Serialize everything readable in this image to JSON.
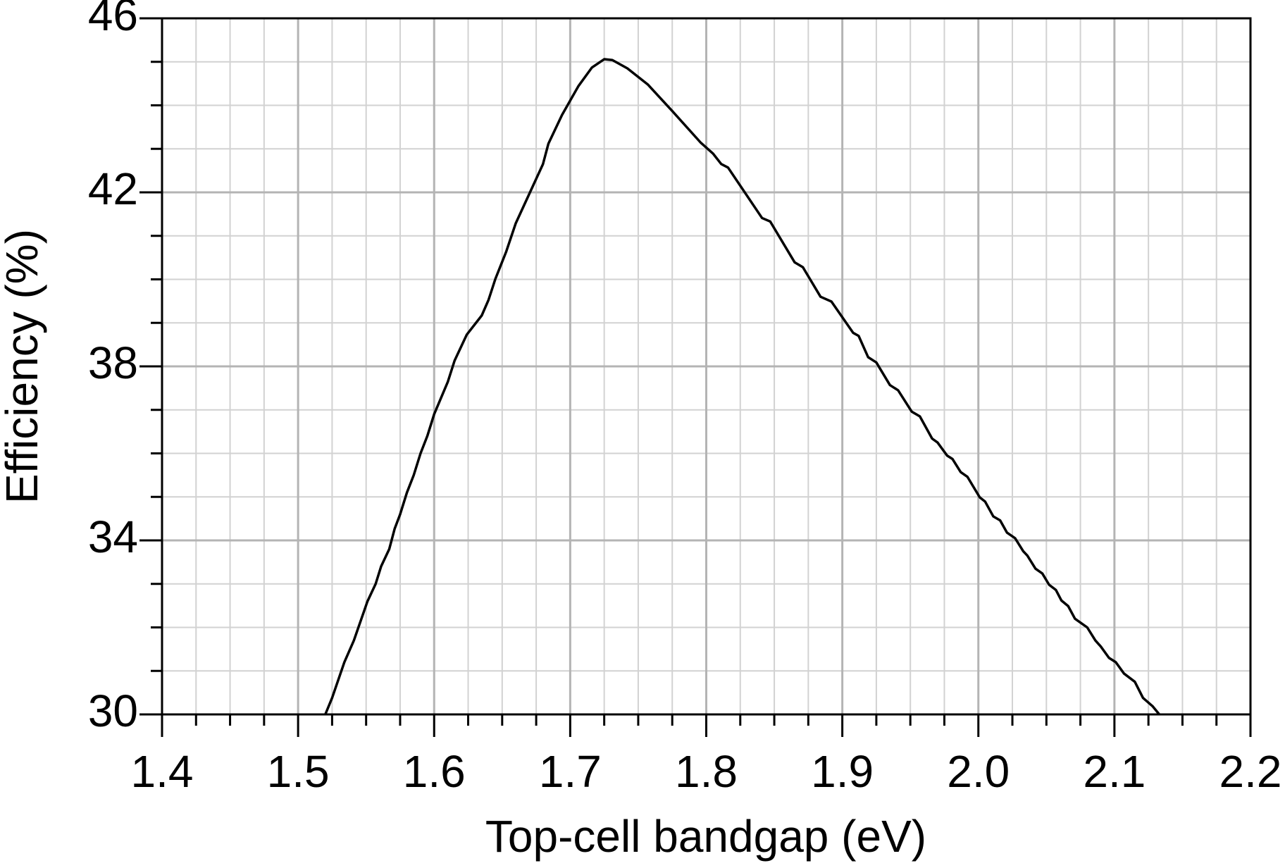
{
  "chart_data": {
    "type": "line",
    "xlabel": "Top-cell bandgap (eV)",
    "ylabel": "Efficiency (%)",
    "xlim": [
      1.4,
      2.2
    ],
    "ylim": [
      30,
      46
    ],
    "xticks": [
      1.4,
      1.5,
      1.6,
      1.7,
      1.8,
      1.9,
      {
        "value": 2,
        "label": "2.0"
      },
      2.1,
      2.2
    ],
    "yticks": [
      30,
      34,
      38,
      42,
      46
    ],
    "grid": true,
    "series": [
      {
        "color": "#000000",
        "x": [
          1.52,
          1.525,
          1.534,
          1.541,
          1.551,
          1.557,
          1.561,
          1.567,
          1.571,
          1.575,
          1.58,
          1.585,
          1.59,
          1.595,
          1.6,
          1.61,
          1.615,
          1.624,
          1.635,
          1.64,
          1.645,
          1.653,
          1.66,
          1.67,
          1.68,
          1.684,
          1.694,
          1.706,
          1.716,
          1.725,
          1.731,
          1.742,
          1.757,
          1.775,
          1.796,
          1.805,
          1.811,
          1.816,
          1.841,
          1.847,
          1.865,
          1.871,
          1.884,
          1.892,
          1.908,
          1.912,
          1.919,
          1.925,
          1.935,
          1.941,
          1.951,
          1.957,
          1.966,
          1.97,
          1.977,
          1.981,
          1.987,
          1.992,
          2.001,
          2.005,
          2.011,
          2.016,
          2.021,
          2.027,
          2.033,
          2.036,
          2.042,
          2.047,
          2.052,
          2.057,
          2.061,
          2.066,
          2.071,
          2.08,
          2.086,
          2.09,
          2.096,
          2.101,
          2.107,
          2.115,
          2.121,
          2.128,
          2.133
        ],
        "values": [
          30.0,
          30.38,
          31.2,
          31.7,
          32.6,
          33.0,
          33.4,
          33.8,
          34.27,
          34.6,
          35.1,
          35.5,
          36.0,
          36.4,
          36.9,
          37.64,
          38.13,
          38.73,
          39.17,
          39.53,
          40.01,
          40.64,
          41.29,
          41.97,
          42.65,
          43.12,
          43.78,
          44.44,
          44.87,
          45.06,
          45.04,
          44.85,
          44.48,
          43.87,
          43.14,
          42.89,
          42.65,
          42.57,
          41.41,
          41.33,
          40.39,
          40.28,
          39.6,
          39.49,
          38.77,
          38.7,
          38.21,
          38.09,
          37.57,
          37.45,
          36.96,
          36.85,
          36.34,
          36.25,
          35.95,
          35.87,
          35.57,
          35.46,
          34.99,
          34.89,
          34.55,
          34.46,
          34.18,
          34.05,
          33.75,
          33.65,
          33.35,
          33.24,
          32.98,
          32.86,
          32.62,
          32.49,
          32.2,
          32.0,
          31.7,
          31.56,
          31.3,
          31.2,
          30.94,
          30.75,
          30.38,
          30.19,
          30.0
        ]
      }
    ]
  }
}
